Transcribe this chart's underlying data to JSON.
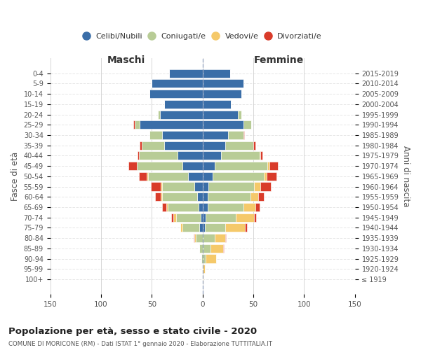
{
  "age_groups": [
    "0-4",
    "5-9",
    "10-14",
    "15-19",
    "20-24",
    "25-29",
    "30-34",
    "35-39",
    "40-44",
    "45-49",
    "50-54",
    "55-59",
    "60-64",
    "65-69",
    "70-74",
    "75-79",
    "80-84",
    "85-89",
    "90-94",
    "95-99",
    "100+"
  ],
  "birth_years": [
    "2015-2019",
    "2010-2014",
    "2005-2009",
    "2000-2004",
    "1995-1999",
    "1990-1994",
    "1985-1989",
    "1980-1984",
    "1975-1979",
    "1970-1974",
    "1965-1969",
    "1960-1964",
    "1955-1959",
    "1950-1954",
    "1945-1949",
    "1940-1944",
    "1935-1939",
    "1930-1934",
    "1925-1929",
    "1920-1924",
    "≤ 1919"
  ],
  "maschi": {
    "celibi": [
      33,
      50,
      52,
      38,
      42,
      62,
      40,
      38,
      25,
      20,
      14,
      8,
      5,
      4,
      2,
      3,
      0,
      0,
      0,
      0,
      0
    ],
    "coniugati": [
      0,
      0,
      0,
      0,
      2,
      5,
      12,
      22,
      38,
      45,
      40,
      32,
      35,
      30,
      24,
      17,
      7,
      3,
      1,
      0,
      0
    ],
    "vedovi": [
      0,
      0,
      0,
      0,
      0,
      0,
      0,
      0,
      0,
      0,
      1,
      1,
      1,
      2,
      3,
      2,
      1,
      0,
      0,
      0,
      0
    ],
    "divorziati": [
      0,
      0,
      0,
      0,
      0,
      1,
      0,
      2,
      1,
      8,
      8,
      10,
      6,
      4,
      2,
      0,
      1,
      0,
      0,
      0,
      0
    ]
  },
  "femmine": {
    "nubili": [
      27,
      40,
      38,
      28,
      35,
      40,
      25,
      22,
      18,
      12,
      10,
      6,
      5,
      5,
      3,
      2,
      0,
      0,
      0,
      0,
      0
    ],
    "coniugate": [
      0,
      0,
      0,
      0,
      3,
      8,
      15,
      28,
      38,
      52,
      50,
      45,
      42,
      35,
      30,
      20,
      12,
      8,
      3,
      0,
      0
    ],
    "vedove": [
      0,
      0,
      0,
      0,
      0,
      0,
      0,
      0,
      1,
      2,
      3,
      6,
      8,
      12,
      18,
      20,
      10,
      12,
      10,
      2,
      1
    ],
    "divorziate": [
      0,
      0,
      0,
      0,
      0,
      0,
      1,
      2,
      2,
      8,
      10,
      10,
      5,
      4,
      2,
      2,
      1,
      1,
      0,
      0,
      0
    ]
  },
  "colors": {
    "celibi_nubili": "#3a6ea8",
    "coniugati": "#b8cc96",
    "vedovi": "#f5c96a",
    "divorziati": "#d93b2a"
  },
  "title": "Popolazione per età, sesso e stato civile - 2020",
  "subtitle": "COMUNE DI MORICONE (RM) - Dati ISTAT 1° gennaio 2020 - Elaborazione TUTTITALIA.IT",
  "xlabel_left": "Maschi",
  "xlabel_right": "Femmine",
  "ylabel_left": "Fasce di età",
  "ylabel_right": "Anni di nascita",
  "xlim": 150,
  "legend_labels": [
    "Celibi/Nubili",
    "Coniugati/e",
    "Vedovi/e",
    "Divorziati/e"
  ],
  "background_color": "#ffffff",
  "grid_color": "#cccccc"
}
